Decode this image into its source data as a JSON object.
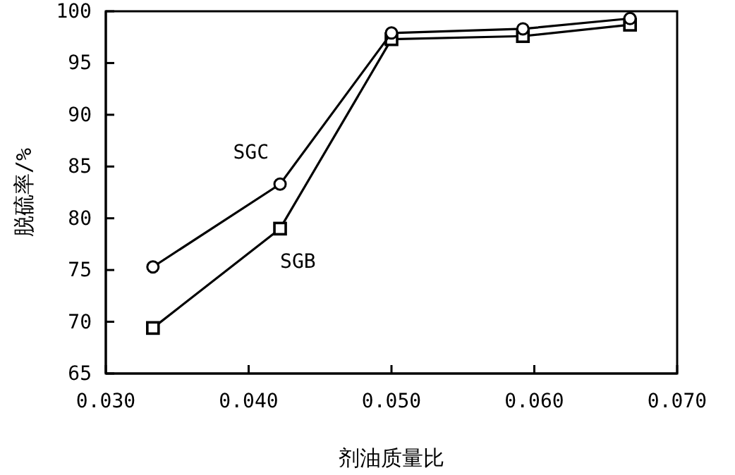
{
  "chart_data": {
    "type": "line",
    "xlabel": "剂油质量比",
    "ylabel": "脱硫率/%",
    "series": [
      {
        "name": "SGC",
        "color": "#000000",
        "marker": "circle",
        "x": [
          0.0333,
          0.0422,
          0.05,
          0.0592,
          0.0667
        ],
        "values": [
          75.3,
          83.3,
          97.9,
          98.3,
          99.3
        ]
      },
      {
        "name": "SGB",
        "color": "#000000",
        "marker": "square",
        "x": [
          0.0333,
          0.0422,
          0.05,
          0.0592,
          0.0667
        ],
        "values": [
          69.4,
          79.0,
          97.3,
          97.6,
          98.7
        ]
      }
    ],
    "xlim": [
      0.03,
      0.07
    ],
    "xticks": [
      {
        "value": 0.03,
        "label": "0.030"
      },
      {
        "value": 0.04,
        "label": "0.040"
      },
      {
        "value": 0.05,
        "label": "0.050"
      },
      {
        "value": 0.06,
        "label": "0.060"
      },
      {
        "value": 0.07,
        "label": "0.070"
      }
    ],
    "ylim": [
      65,
      100
    ],
    "yticks": [
      65,
      70,
      75,
      80,
      85,
      90,
      95,
      100
    ],
    "grid": false,
    "legend": false,
    "line_style": "solid"
  }
}
